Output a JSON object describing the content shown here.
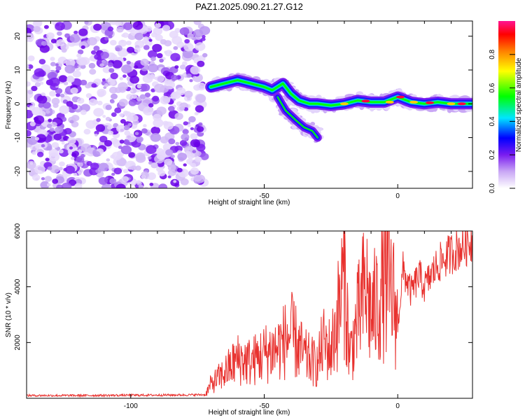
{
  "figure_title": "PAZ1.2025.090.21.27.G12",
  "chart_data": [
    {
      "type": "heatmap",
      "title": "PAZ1.2025.090.21.27.G12",
      "xlabel": "Height of straight line (km)",
      "ylabel": "Frequency (Hz)",
      "xlim": [
        -139,
        28
      ],
      "ylim": [
        -25,
        24.5
      ],
      "x_ticks": [
        -100,
        -50,
        0
      ],
      "y_ticks": [
        20,
        10,
        0,
        -10,
        -20
      ],
      "grid": false,
      "noise_region_x": [
        -139,
        -72
      ],
      "signal_ridge": {
        "x": [
          -70,
          -65,
          -60,
          -55,
          -50,
          -47,
          -43,
          -40,
          -37,
          -33,
          -30,
          -25,
          -20,
          -15,
          -10,
          -5,
          0,
          5,
          10,
          15,
          20,
          25,
          28
        ],
        "y": [
          5,
          6,
          7,
          6,
          5,
          4,
          6,
          3,
          1,
          0,
          0,
          -0.5,
          0,
          1,
          0.5,
          0.5,
          2,
          0.5,
          0,
          0.5,
          0,
          0,
          0
        ]
      },
      "secondary_branch": {
        "x": [
          -45,
          -42,
          -38,
          -35,
          -32,
          -30
        ],
        "y": [
          2,
          -2,
          -5,
          -7,
          -8,
          -10
        ]
      },
      "colorbar": {
        "label": "Normalized spectral amplitude",
        "ticks": [
          0.0,
          0.2,
          0.4,
          0.6,
          0.8
        ],
        "range": [
          0,
          1
        ],
        "colors": [
          "#ffffff",
          "#9400d3",
          "#0000ff",
          "#00ffff",
          "#00ff00",
          "#ffff00",
          "#ff8000",
          "#ff0000",
          "#ff0080"
        ]
      }
    },
    {
      "type": "line",
      "xlabel": "Height of straight line (km)",
      "ylabel": "SNR (10 * v/v)",
      "xlim": [
        -139,
        28
      ],
      "ylim": [
        0,
        6000
      ],
      "x_ticks": [
        -100,
        -50,
        0
      ],
      "y_ticks": [
        2000,
        4000,
        6000
      ],
      "grid": false,
      "series": [
        {
          "color": "#e8312e",
          "x": [
            -139,
            -120,
            -100,
            -80,
            -72,
            -70,
            -65,
            -60,
            -55,
            -50,
            -45,
            -40,
            -35,
            -30,
            -28,
            -25,
            -22,
            -20,
            -18,
            -15,
            -12,
            -10,
            -8,
            -5,
            -2,
            0,
            2,
            5,
            8,
            10,
            15,
            20,
            25,
            28
          ],
          "y": [
            100,
            100,
            110,
            120,
            130,
            500,
            900,
            1400,
            1300,
            1600,
            1800,
            2300,
            1500,
            1200,
            2000,
            1700,
            3200,
            4500,
            1500,
            2800,
            4000,
            3000,
            3300,
            4200,
            3800,
            2600,
            4600,
            3800,
            4400,
            4000,
            4800,
            5200,
            5500,
            5700
          ]
        }
      ]
    }
  ]
}
